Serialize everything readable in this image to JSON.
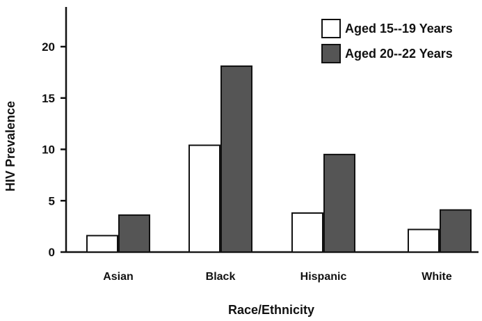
{
  "chart_data": {
    "type": "bar",
    "categories": [
      "Asian",
      "Black",
      "Hispanic",
      "White"
    ],
    "series": [
      {
        "name": "Aged 15--19 Years",
        "values": [
          1.6,
          10.4,
          3.8,
          2.2
        ],
        "color": "#ffffff"
      },
      {
        "name": "Aged 20--22 Years",
        "values": [
          3.6,
          18.1,
          9.5,
          4.1
        ],
        "color": "#555555"
      }
    ],
    "xlabel": "Race/Ethnicity",
    "ylabel": "HIV Prevalence",
    "ylim": [
      0,
      24
    ],
    "yticks": [
      0,
      5,
      10,
      15,
      20
    ],
    "ytick_labels": [
      "0",
      "5",
      "10",
      "15",
      "20"
    ],
    "grid": false,
    "legend_position": "top-right"
  }
}
